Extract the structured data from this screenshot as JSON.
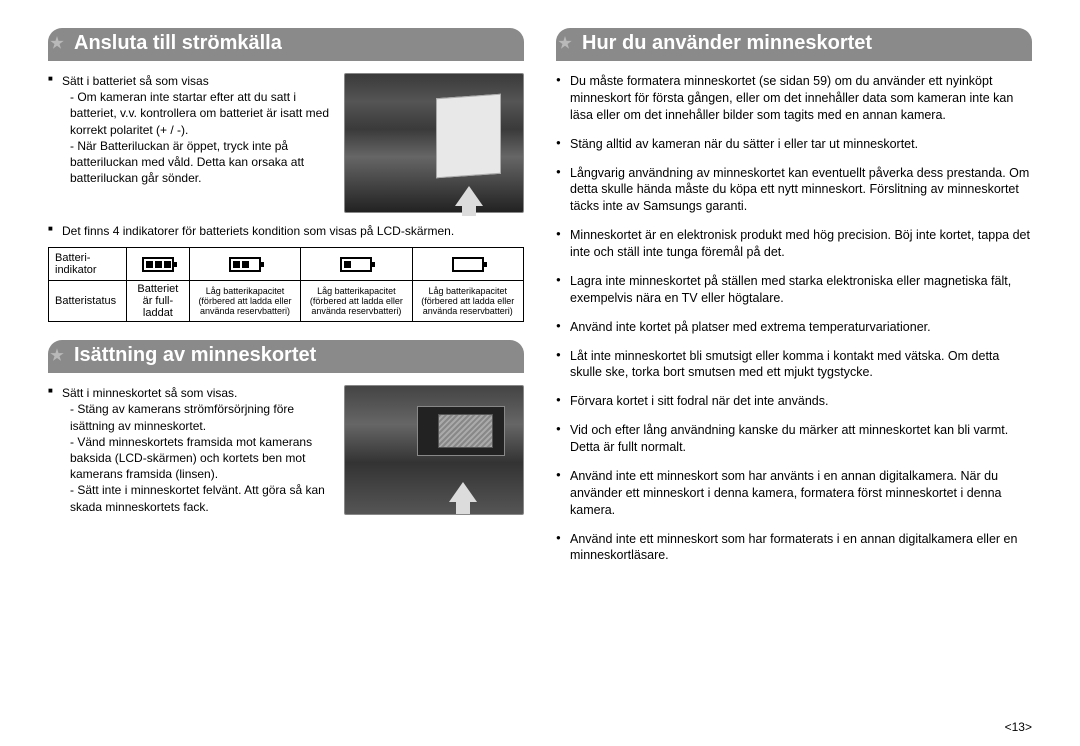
{
  "left": {
    "header1": "Ansluta till strömkälla",
    "block1_lead": "Sätt i batteriet så som visas",
    "block1_l1": "- Om kameran inte startar efter att du satt i batteriet, v.v. kontrollera om batteriet är isatt med korrekt polaritet (+ / -).",
    "block1_l2": "- När Batteriluckan är öppet, tryck inte på batteriluckan med våld. Detta kan orsaka att batteriluckan går sönder.",
    "block2_lead": "Det finns 4 indikatorer för batteriets kondition som visas på LCD-skärmen.",
    "table": {
      "row1_head": "Batteri-\nindikator",
      "row2_head": "Batteristatus",
      "status_full": "Batteriet är full-laddat",
      "status_low": "Låg batterikapacitet (förbered att ladda eller använda reservbatteri)"
    },
    "header2": "Isättning av minneskortet",
    "block3_lead": "Sätt i minneskortet så som visas.",
    "block3_l1": "- Stäng av kamerans strömförsörjning före isättning av minneskortet.",
    "block3_l2": "- Vänd minneskortets framsida mot kamerans baksida (LCD-skärmen) och kortets ben mot kamerans framsida (linsen).",
    "block3_l3": "- Sätt inte i minneskortet felvänt. Att göra så kan skada minneskortets fack."
  },
  "right": {
    "header": "Hur du använder minneskortet",
    "b1": "Du måste formatera minneskortet (se sidan 59) om du använder ett nyinköpt minneskort för första gången, eller om det innehåller data som kameran inte kan läsa eller om det innehåller bilder som tagits med en annan kamera.",
    "b2": "Stäng alltid av kameran när du sätter i eller tar ut minneskortet.",
    "b3": "Långvarig användning av minneskortet kan eventuellt påverka dess prestanda. Om detta skulle hända måste du köpa ett nytt minneskort. Förslitning av minneskortet täcks inte av Samsungs garanti.",
    "b4": "Minneskortet är en elektronisk produkt med hög precision. Böj inte kortet, tappa det inte och ställ inte tunga föremål på det.",
    "b5": "Lagra inte minneskortet på ställen med starka elektroniska eller magnetiska fält, exempelvis nära en TV eller högtalare.",
    "b6": "Använd inte kortet på platser med extrema temperaturvariationer.",
    "b7": "Låt inte minneskortet bli smutsigt eller komma i kontakt med vätska. Om detta skulle ske, torka bort smutsen med ett mjukt tygstycke.",
    "b8": "Förvara kortet i sitt fodral när det inte används.",
    "b9": "Vid och efter lång användning kanske du märker att minneskortet kan bli varmt. Detta är fullt normalt.",
    "b10": "Använd inte ett minneskort som har använts i en annan digitalkamera. När du använder ett minneskort i denna kamera, formatera först minneskortet i denna kamera.",
    "b11": "Använd inte ett minneskort som har formaterats i en annan digitalkamera eller en minneskortläsare."
  },
  "page_number": "<13>"
}
